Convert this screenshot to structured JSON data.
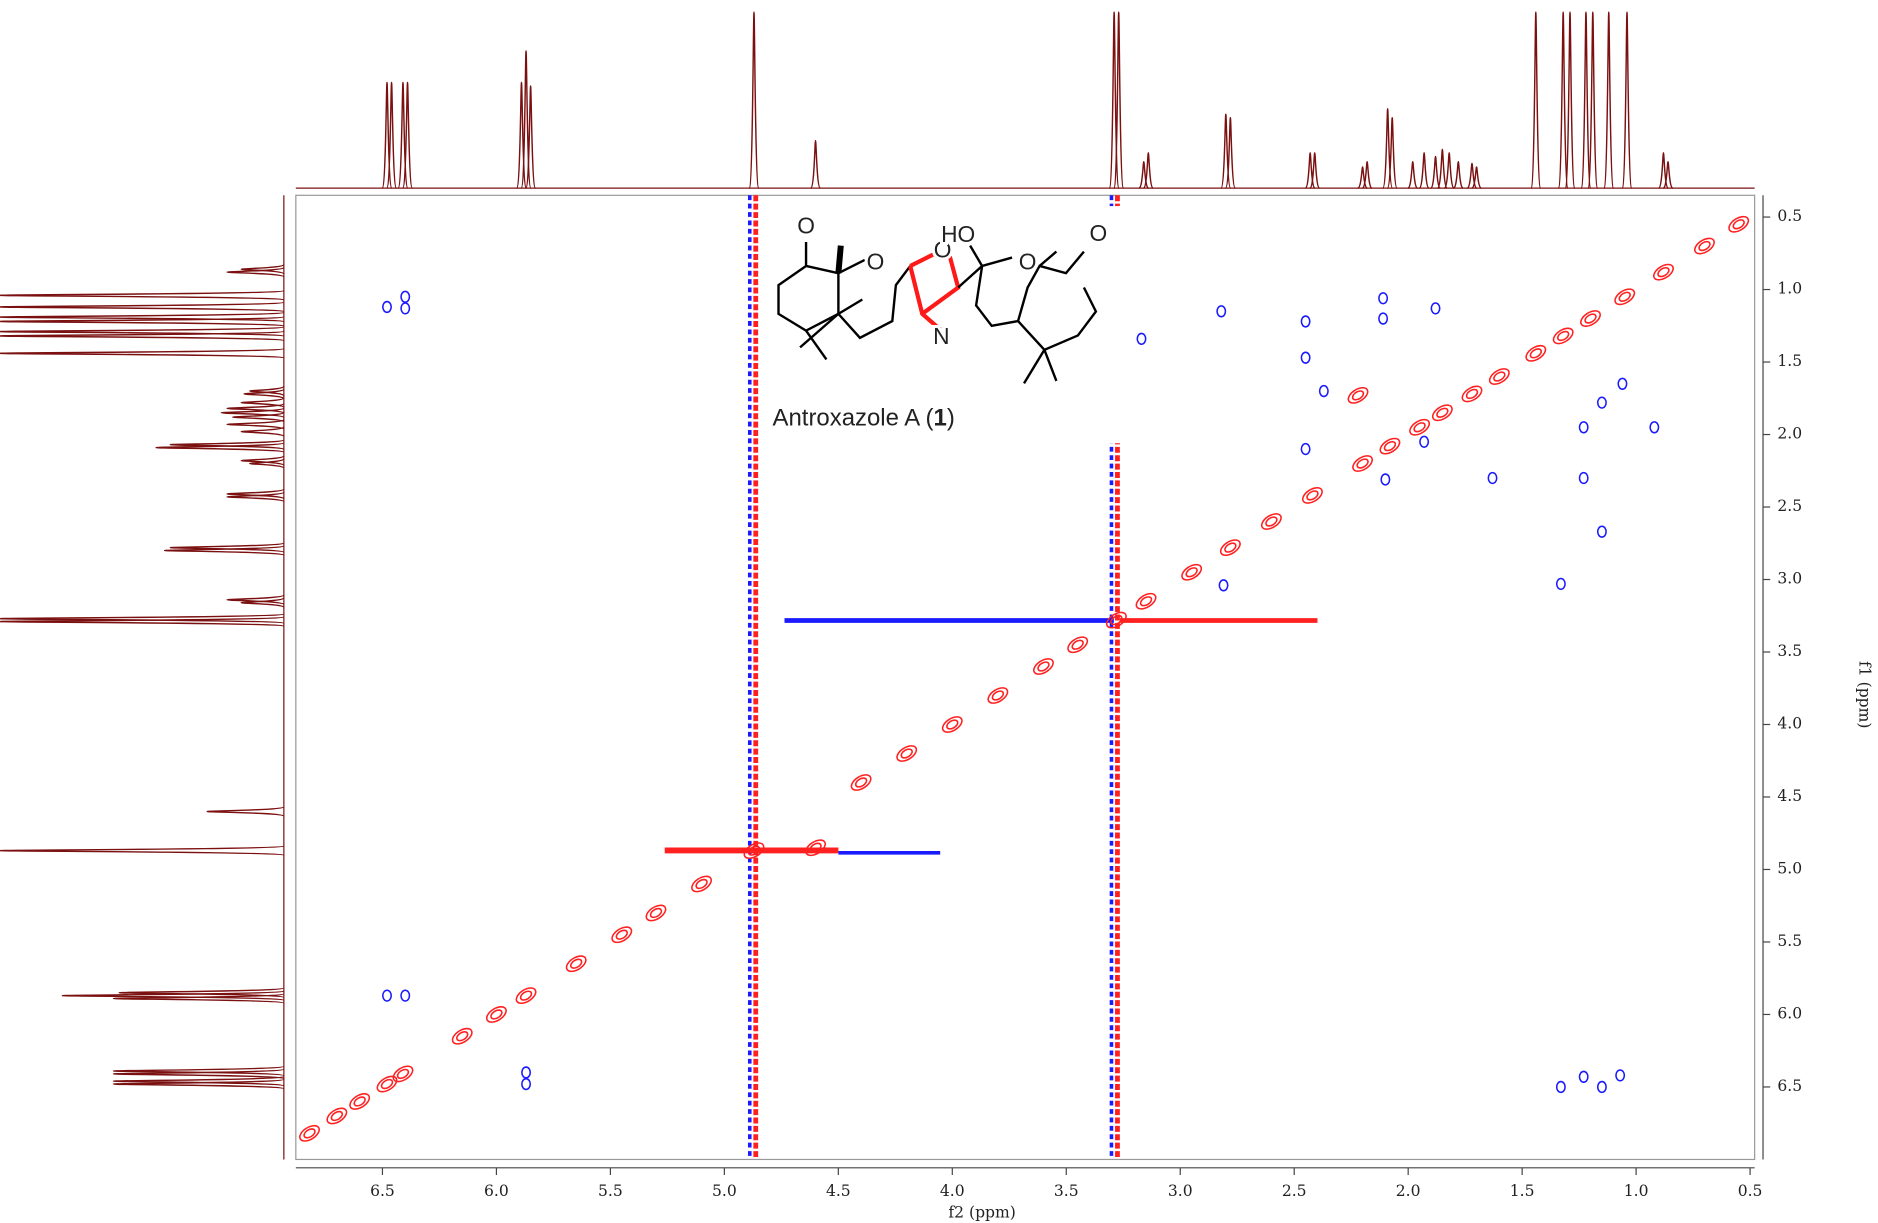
{
  "chart_data": {
    "type": "nmr2d",
    "xlabel": "f2 (ppm)",
    "ylabel": "f1 (ppm)",
    "xlim": [
      6.88,
      0.48
    ],
    "ylim": [
      0.35,
      7.0
    ],
    "xticks": [
      6.5,
      {
        "value": 6,
        "label": "6.0"
      },
      5.5,
      {
        "value": 5,
        "label": "5.0"
      },
      4.5,
      {
        "value": 4,
        "label": "4.0"
      },
      3.5,
      {
        "value": 3,
        "label": "3.0"
      },
      2.5,
      {
        "value": 2,
        "label": "2.0"
      },
      1.5,
      {
        "value": 1,
        "label": "1.0"
      },
      0.5
    ],
    "yticks": [
      0.5,
      {
        "value": 1,
        "label": "1.0"
      },
      1.5,
      {
        "value": 2,
        "label": "2.0"
      },
      2.5,
      {
        "value": 3,
        "label": "3.0"
      },
      3.5,
      {
        "value": 4,
        "label": "4.0"
      },
      4.5,
      {
        "value": 5,
        "label": "5.0"
      },
      5.5,
      {
        "value": 6,
        "label": "6.0"
      },
      6.5
    ],
    "projection": {
      "color": "#7a1010",
      "ppm": [
        6.48,
        6.46,
        6.41,
        6.39,
        5.89,
        5.87,
        5.85,
        4.87,
        4.6,
        3.29,
        3.27,
        3.16,
        3.14,
        2.8,
        2.78,
        2.43,
        2.41,
        2.09,
        2.07,
        2.2,
        2.18,
        1.98,
        1.93,
        1.88,
        1.85,
        1.82,
        1.78,
        1.72,
        1.7,
        1.44,
        1.32,
        1.29,
        1.22,
        1.19,
        1.12,
        1.04,
        0.88,
        0.86
      ],
      "intensity": [
        0.6,
        0.6,
        0.6,
        0.6,
        0.6,
        0.78,
        0.58,
        1.0,
        0.27,
        1.0,
        1.0,
        0.15,
        0.2,
        0.42,
        0.4,
        0.2,
        0.2,
        0.45,
        0.4,
        0.12,
        0.15,
        0.15,
        0.2,
        0.18,
        0.22,
        0.2,
        0.15,
        0.14,
        0.12,
        1.0,
        1.0,
        1.0,
        1.0,
        1.0,
        1.0,
        1.0,
        0.2,
        0.15
      ]
    },
    "positive": {
      "color": "#ff2020",
      "x": [
        6.82,
        6.7,
        6.6,
        6.48,
        6.41,
        6.15,
        6.0,
        5.87,
        5.65,
        5.45,
        5.3,
        5.1,
        4.87,
        4.6,
        4.4,
        4.2,
        4.0,
        3.8,
        3.6,
        3.45,
        3.28,
        3.15,
        2.95,
        2.78,
        2.6,
        2.42,
        2.2,
        2.08,
        1.95,
        1.85,
        1.72,
        1.6,
        1.44,
        1.32,
        1.2,
        1.05,
        0.88,
        0.7,
        0.55,
        2.22
      ],
      "y": [
        6.82,
        6.7,
        6.6,
        6.48,
        6.41,
        6.15,
        6.0,
        5.87,
        5.65,
        5.45,
        5.3,
        5.1,
        4.87,
        4.85,
        4.4,
        4.2,
        4.0,
        3.8,
        3.6,
        3.45,
        3.28,
        3.15,
        2.95,
        2.78,
        2.6,
        2.42,
        2.2,
        2.08,
        1.95,
        1.85,
        1.72,
        1.6,
        1.44,
        1.32,
        1.2,
        1.05,
        0.88,
        0.7,
        0.55,
        1.73
      ]
    },
    "negative": {
      "color": "#1a1aff",
      "x": [
        6.48,
        6.4,
        6.4,
        6.48,
        6.4,
        5.87,
        5.87,
        2.82,
        2.45,
        2.45,
        2.45,
        2.11,
        2.11,
        2.1,
        2.81,
        1.33,
        1.33,
        1.23,
        1.07,
        1.15,
        1.63,
        1.23,
        1.15,
        1.23,
        1.15,
        1.06,
        0.92,
        2.37,
        1.93,
        3.17,
        1.88
      ],
      "y": [
        1.12,
        1.05,
        1.13,
        5.87,
        5.87,
        6.4,
        6.48,
        1.15,
        1.22,
        1.47,
        2.1,
        1.06,
        1.2,
        2.31,
        3.04,
        3.03,
        6.5,
        6.43,
        6.42,
        6.5,
        2.3,
        2.3,
        2.67,
        1.95,
        1.78,
        1.65,
        1.95,
        1.7,
        2.05,
        1.34,
        1.13
      ]
    },
    "annotation": {
      "parts": [
        "Antroxazole A (",
        "1",
        ")"
      ],
      "atoms": [
        "O",
        "O",
        "O",
        "N",
        "HO",
        "O",
        "O"
      ]
    }
  }
}
